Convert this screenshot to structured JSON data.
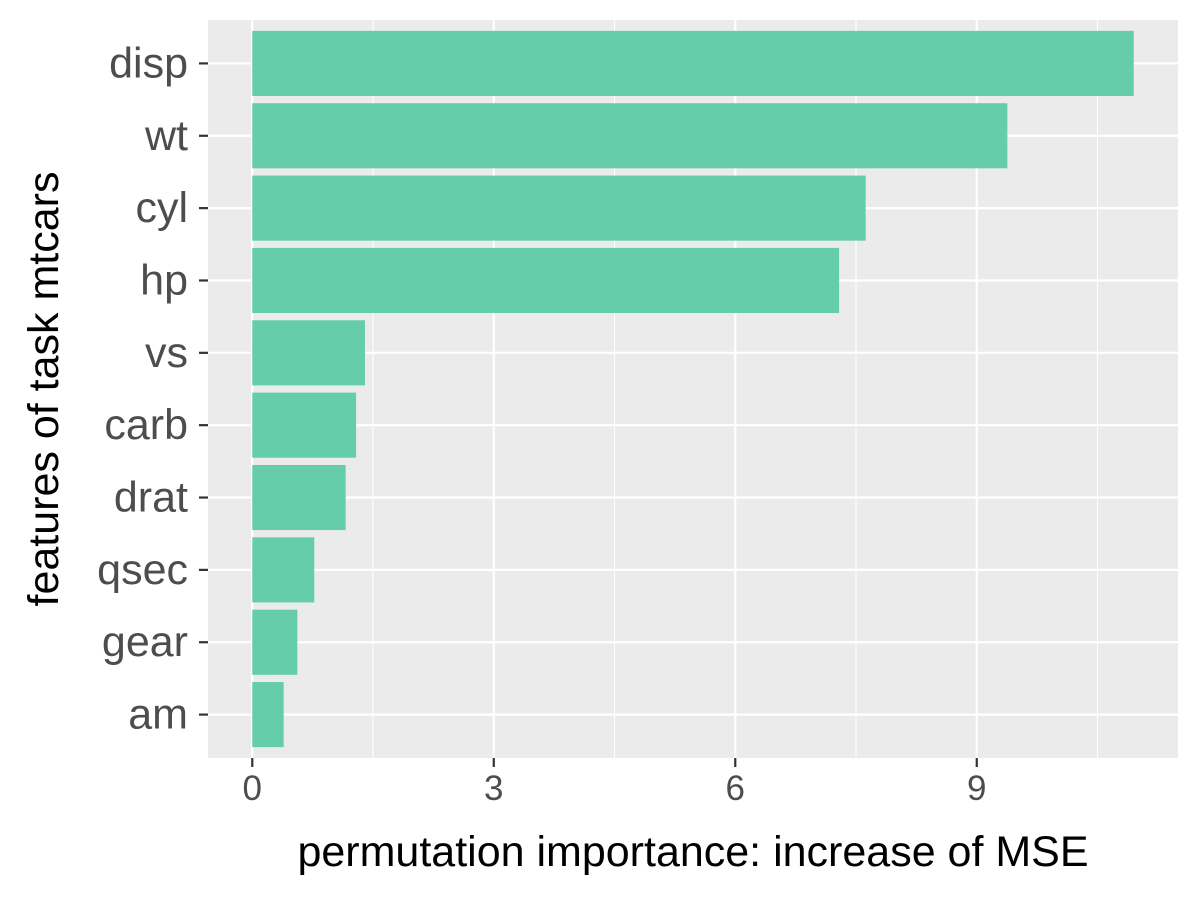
{
  "chart_data": {
    "type": "bar",
    "orientation": "horizontal",
    "categories": [
      "disp",
      "wt",
      "cyl",
      "hp",
      "vs",
      "carb",
      "drat",
      "qsec",
      "gear",
      "am"
    ],
    "values": [
      10.95,
      9.38,
      7.62,
      7.29,
      1.4,
      1.29,
      1.16,
      0.77,
      0.56,
      0.39
    ],
    "xlabel": "permutation importance: increase of MSE",
    "ylabel": "features of task mtcars",
    "xlim": [
      -0.55,
      11.5
    ],
    "xticks": [
      0,
      3,
      6,
      9
    ],
    "xtick_labels": [
      "0",
      "3",
      "6",
      "9"
    ],
    "grid": true,
    "legend": "none",
    "colors": {
      "bar": "#66CDAA",
      "panel_background": "#EBEBEB",
      "grid": "#FFFFFF",
      "tick_text": "#4D4D4D",
      "tick_mark": "#333333",
      "axis_title": "#000000"
    }
  }
}
